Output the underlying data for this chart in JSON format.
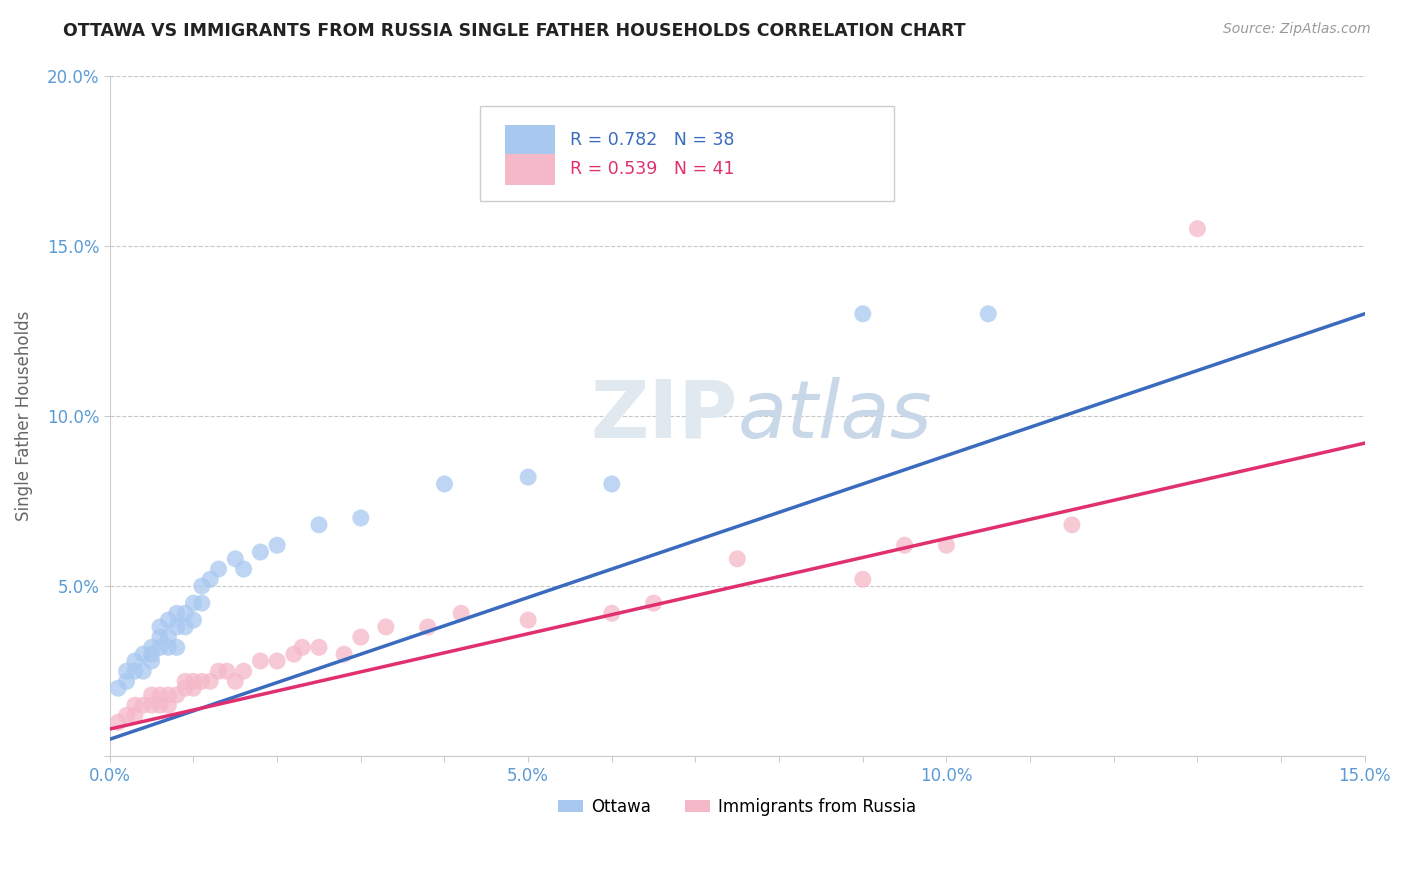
{
  "title": "OTTAWA VS IMMIGRANTS FROM RUSSIA SINGLE FATHER HOUSEHOLDS CORRELATION CHART",
  "source": "Source: ZipAtlas.com",
  "ylabel": "Single Father Households",
  "xlim": [
    0.0,
    0.15
  ],
  "ylim": [
    0.0,
    0.2
  ],
  "legend_r1": "R = 0.782",
  "legend_n1": "N = 38",
  "legend_r2": "R = 0.539",
  "legend_n2": "N = 41",
  "color_ottawa": "#a8c8f0",
  "color_russia": "#f5b8c8",
  "color_line_ottawa": "#3a6bbf",
  "color_line_russia": "#e03070",
  "background_color": "#ffffff",
  "grid_color": "#c8c8c8",
  "watermark_color": "#e0e8f0",
  "ottawa_x": [
    0.001,
    0.002,
    0.002,
    0.003,
    0.003,
    0.004,
    0.004,
    0.005,
    0.005,
    0.005,
    0.006,
    0.006,
    0.006,
    0.007,
    0.007,
    0.007,
    0.008,
    0.008,
    0.008,
    0.009,
    0.009,
    0.01,
    0.01,
    0.011,
    0.011,
    0.012,
    0.013,
    0.015,
    0.016,
    0.018,
    0.02,
    0.025,
    0.03,
    0.04,
    0.05,
    0.06,
    0.09,
    0.105
  ],
  "ottawa_y": [
    0.02,
    0.022,
    0.025,
    0.025,
    0.028,
    0.025,
    0.03,
    0.028,
    0.03,
    0.032,
    0.032,
    0.035,
    0.038,
    0.032,
    0.035,
    0.04,
    0.032,
    0.038,
    0.042,
    0.038,
    0.042,
    0.04,
    0.045,
    0.045,
    0.05,
    0.052,
    0.055,
    0.058,
    0.055,
    0.06,
    0.062,
    0.068,
    0.07,
    0.08,
    0.082,
    0.08,
    0.13,
    0.13
  ],
  "russia_x": [
    0.001,
    0.002,
    0.003,
    0.003,
    0.004,
    0.005,
    0.005,
    0.006,
    0.006,
    0.007,
    0.007,
    0.008,
    0.009,
    0.009,
    0.01,
    0.01,
    0.011,
    0.012,
    0.013,
    0.014,
    0.015,
    0.016,
    0.018,
    0.02,
    0.022,
    0.023,
    0.025,
    0.028,
    0.03,
    0.033,
    0.038,
    0.042,
    0.05,
    0.06,
    0.065,
    0.075,
    0.09,
    0.095,
    0.1,
    0.115,
    0.13
  ],
  "russia_y": [
    0.01,
    0.012,
    0.012,
    0.015,
    0.015,
    0.015,
    0.018,
    0.015,
    0.018,
    0.015,
    0.018,
    0.018,
    0.02,
    0.022,
    0.02,
    0.022,
    0.022,
    0.022,
    0.025,
    0.025,
    0.022,
    0.025,
    0.028,
    0.028,
    0.03,
    0.032,
    0.032,
    0.03,
    0.035,
    0.038,
    0.038,
    0.042,
    0.04,
    0.042,
    0.045,
    0.058,
    0.052,
    0.062,
    0.062,
    0.068,
    0.155
  ],
  "line_ottawa_x0": 0.0,
  "line_ottawa_y0": 0.005,
  "line_ottawa_x1": 0.15,
  "line_ottawa_y1": 0.13,
  "line_russia_x0": 0.0,
  "line_russia_y0": 0.008,
  "line_russia_x1": 0.15,
  "line_russia_y1": 0.092
}
